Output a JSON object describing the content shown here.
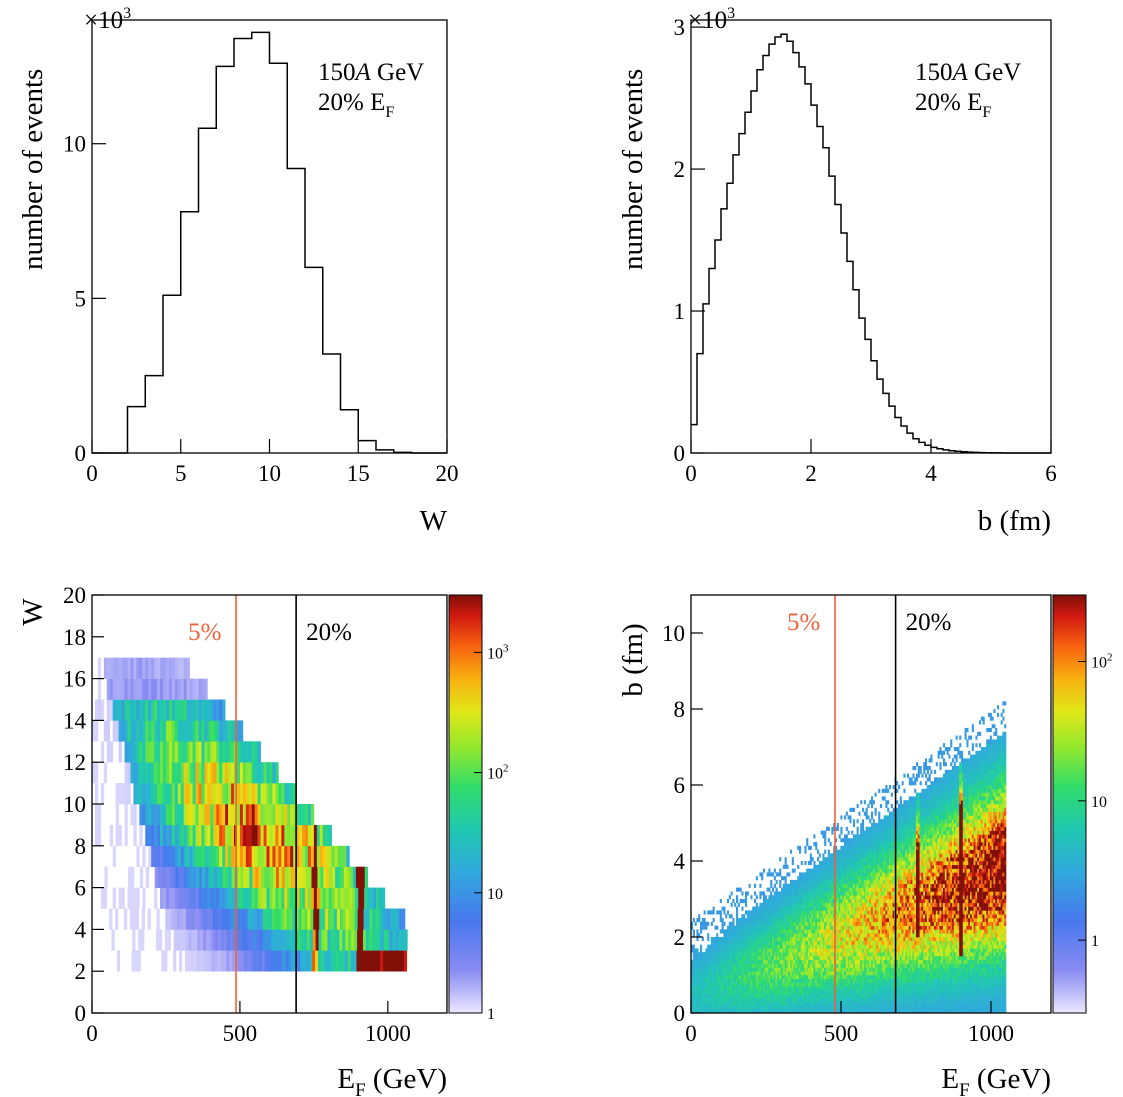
{
  "panels": {
    "tl": {
      "scale_label": "×10",
      "scale_exp": "3",
      "annotation_line1_pre": "150",
      "annotation_line1_italic": "A",
      "annotation_line1_post": " GeV",
      "annotation_line2": "20% E",
      "annotation_line2_sub": "F"
    },
    "tr": {
      "scale_label": "×10",
      "scale_exp": "3",
      "annotation_line1_pre": "150",
      "annotation_line1_italic": "A",
      "annotation_line1_post": " GeV",
      "annotation_line2": "20% E",
      "annotation_line2_sub": "F"
    },
    "bl": {
      "xlabel_main": "E",
      "xlabel_sub": "F",
      "xlabel_rest": " (GeV)",
      "ylabel": "W",
      "cut5_label": "5%",
      "cut20_label": "20%",
      "colorbar_labels": [
        "10",
        "10",
        "10",
        "1"
      ],
      "colorbar_exps": [
        "3",
        "2",
        "",
        ""
      ]
    },
    "br": {
      "xlabel_main": "E",
      "xlabel_sub": "F",
      "xlabel_rest": " (GeV)",
      "ylabel": "b (fm)",
      "cut5_label": "5%",
      "cut20_label": "20%",
      "colorbar_labels": [
        "10",
        "10",
        "1"
      ],
      "colorbar_exps": [
        "2",
        "",
        ""
      ]
    }
  },
  "chart_data": [
    {
      "type": "bar",
      "subtype": "step-histogram",
      "xlabel": "W",
      "ylabel": "number of events",
      "xlim": [
        0,
        20
      ],
      "ylim": [
        0,
        14
      ],
      "y_multiplier": "×10^3",
      "xticks": [
        0,
        5,
        10,
        15,
        20
      ],
      "yticks": [
        0,
        5,
        10
      ],
      "bin_width": 1,
      "bin_edges_start": 0,
      "values": [
        0,
        0,
        1.5,
        2.5,
        5.1,
        7.8,
        10.5,
        12.5,
        13.4,
        13.6,
        12.6,
        9.2,
        6.0,
        3.2,
        1.4,
        0.4,
        0.1,
        0.02,
        0,
        0
      ]
    },
    {
      "type": "bar",
      "subtype": "step-histogram",
      "xlabel": "b (fm)",
      "ylabel": "number of events",
      "xlim": [
        0,
        6
      ],
      "ylim": [
        0,
        3.05
      ],
      "y_multiplier": "×10^3",
      "xticks": [
        0,
        2,
        4,
        6
      ],
      "yticks": [
        0,
        1,
        2,
        3
      ],
      "bin_width": 0.1,
      "bin_edges_start": 0,
      "values": [
        0.2,
        0.7,
        1.05,
        1.3,
        1.5,
        1.72,
        1.9,
        2.1,
        2.25,
        2.4,
        2.55,
        2.7,
        2.8,
        2.88,
        2.93,
        2.95,
        2.9,
        2.82,
        2.72,
        2.6,
        2.45,
        2.3,
        2.15,
        1.95,
        1.75,
        1.55,
        1.35,
        1.15,
        0.95,
        0.8,
        0.65,
        0.52,
        0.42,
        0.33,
        0.25,
        0.19,
        0.14,
        0.1,
        0.075,
        0.055,
        0.04,
        0.03,
        0.022,
        0.016,
        0.012,
        0.009,
        0.006,
        0.004,
        0.003,
        0.002,
        0.001,
        0.001,
        0,
        0,
        0,
        0,
        0,
        0,
        0,
        0
      ]
    },
    {
      "type": "heatmap",
      "xlabel": "E_F (GeV)",
      "ylabel": "W",
      "xlim": [
        0,
        1200
      ],
      "ylim": [
        0,
        20
      ],
      "xticks": [
        0,
        500,
        1000
      ],
      "yticks": [
        0,
        2,
        4,
        6,
        8,
        10,
        12,
        14,
        16,
        18,
        20
      ],
      "color_scale": "log",
      "z_range": [
        1,
        3000
      ],
      "cut_lines": [
        {
          "label": "5%",
          "x": 487,
          "color": "#f0603a"
        },
        {
          "label": "20%",
          "x": 690,
          "color": "#000000"
        }
      ]
    },
    {
      "type": "heatmap",
      "xlabel": "E_F (GeV)",
      "ylabel": "b (fm)",
      "xlim": [
        0,
        1200
      ],
      "ylim": [
        0,
        11
      ],
      "xticks": [
        0,
        500,
        1000
      ],
      "yticks": [
        0,
        2,
        4,
        6,
        8,
        10
      ],
      "color_scale": "log",
      "z_range": [
        0.3,
        300
      ],
      "cut_lines": [
        {
          "label": "5%",
          "x": 480,
          "color": "#f0603a"
        },
        {
          "label": "20%",
          "x": 682,
          "color": "#000000"
        }
      ]
    }
  ]
}
